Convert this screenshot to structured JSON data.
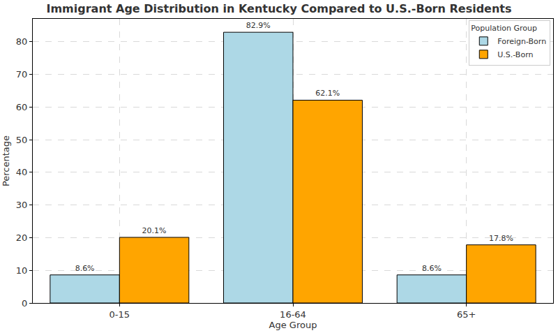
{
  "chart_data": {
    "type": "bar",
    "title": "Immigrant Age Distribution in Kentucky Compared to U.S.-Born Residents",
    "x_label": "Age Group",
    "y_label": "Percentage",
    "categories": [
      "0-15",
      "16-64",
      "65+"
    ],
    "series": [
      {
        "name": "Foreign-Born",
        "color": "#add8e6",
        "values": [
          8.6,
          82.9,
          8.6
        ],
        "value_labels": [
          "8.6%",
          "82.9%",
          "8.6%"
        ]
      },
      {
        "name": "U.S.-Born",
        "color": "#ffa500",
        "values": [
          20.1,
          62.1,
          17.8
        ],
        "value_labels": [
          "20.1%",
          "62.1%",
          "17.8%"
        ]
      }
    ],
    "ylim": [
      0,
      87
    ],
    "yticks": [
      0,
      10,
      20,
      30,
      40,
      50,
      60,
      70,
      80
    ],
    "grid": true,
    "legend": "upper right",
    "legend_title": "Population Group",
    "data_labels": true
  }
}
